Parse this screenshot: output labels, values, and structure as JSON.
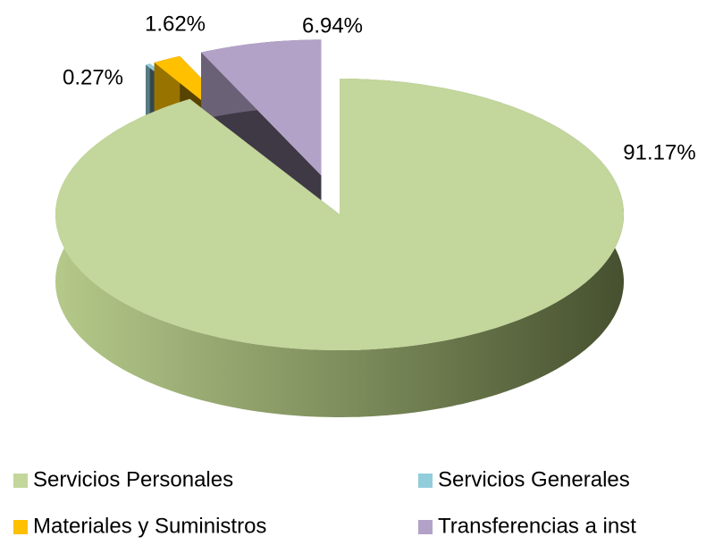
{
  "chart_data": {
    "type": "pie3d",
    "categories": [
      "Servicios Personales",
      "Servicios Generales",
      "Materiales y Suministros",
      "Transferencias a inst"
    ],
    "series": [
      {
        "values": [
          91.17,
          0.27,
          1.62,
          6.94
        ],
        "value_labels": [
          "91.17%",
          "0.27%",
          "1.62%",
          "6.94%"
        ],
        "colors": [
          "#c3d69b",
          "#92cddc",
          "#ffc000",
          "#b3a2c7"
        ]
      }
    ],
    "legend": "bottom"
  }
}
